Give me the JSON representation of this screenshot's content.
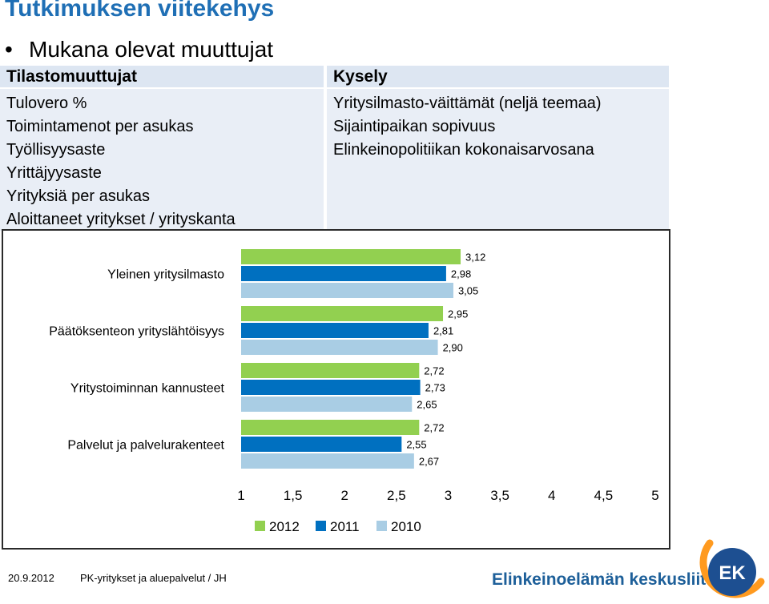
{
  "slide": {
    "title": "Tutkimuksen viitekehys",
    "bullet": "Mukana olevat muuttujat"
  },
  "left_panel": {
    "header": "Tilastomuuttujat",
    "items": [
      "Tulovero %",
      "Toimintamenot per asukas",
      "Työllisyysaste",
      "Yrittäjyysaste",
      "Yrityksiä per asukas",
      "Aloittaneet yritykset / yrityskanta"
    ]
  },
  "right_panel": {
    "header": "Kysely",
    "items": [
      "Yritysilmasto-väittämät (neljä teemaa)",
      "Sijaintipaikan sopivuus",
      "Elinkeinopolitiikan kokonaisarvosana"
    ]
  },
  "chart_data": {
    "type": "bar",
    "orientation": "horizontal",
    "categories": [
      "Yleinen yritysilmasto",
      "Päätöksenteon yrityslähtöisyys",
      "Yritystoiminnan kannusteet",
      "Palvelut ja palvelurakenteet"
    ],
    "series": [
      {
        "name": "2012",
        "color": "#92d050",
        "values": [
          3.12,
          2.95,
          2.72,
          2.72
        ],
        "labels": [
          "3,12",
          "2,95",
          "2,72",
          "2,72"
        ]
      },
      {
        "name": "2011",
        "color": "#0070c0",
        "values": [
          2.98,
          2.81,
          2.73,
          2.55
        ],
        "labels": [
          "2,98",
          "2,81",
          "2,73",
          "2,55"
        ]
      },
      {
        "name": "2010",
        "color": "#a9cde4",
        "values": [
          3.05,
          2.9,
          2.65,
          2.67
        ],
        "labels": [
          "3,05",
          "2,90",
          "2,65",
          "2,67"
        ]
      }
    ],
    "xlim": [
      1,
      5
    ],
    "xticks": [
      1,
      1.5,
      2,
      2.5,
      3,
      3.5,
      4,
      4.5,
      5
    ],
    "xtick_labels": [
      "1",
      "1,5",
      "2",
      "2,5",
      "3",
      "3,5",
      "4",
      "4,5",
      "5"
    ],
    "legend_position": "bottom",
    "grid": false,
    "title": "",
    "xlabel": "",
    "ylabel": ""
  },
  "footer": {
    "date": "20.9.2012",
    "caption": "PK-yritykset ja aluepalvelut / JH",
    "organization": "Elinkeinoelämän keskusliitto",
    "logo_text": "EK"
  }
}
